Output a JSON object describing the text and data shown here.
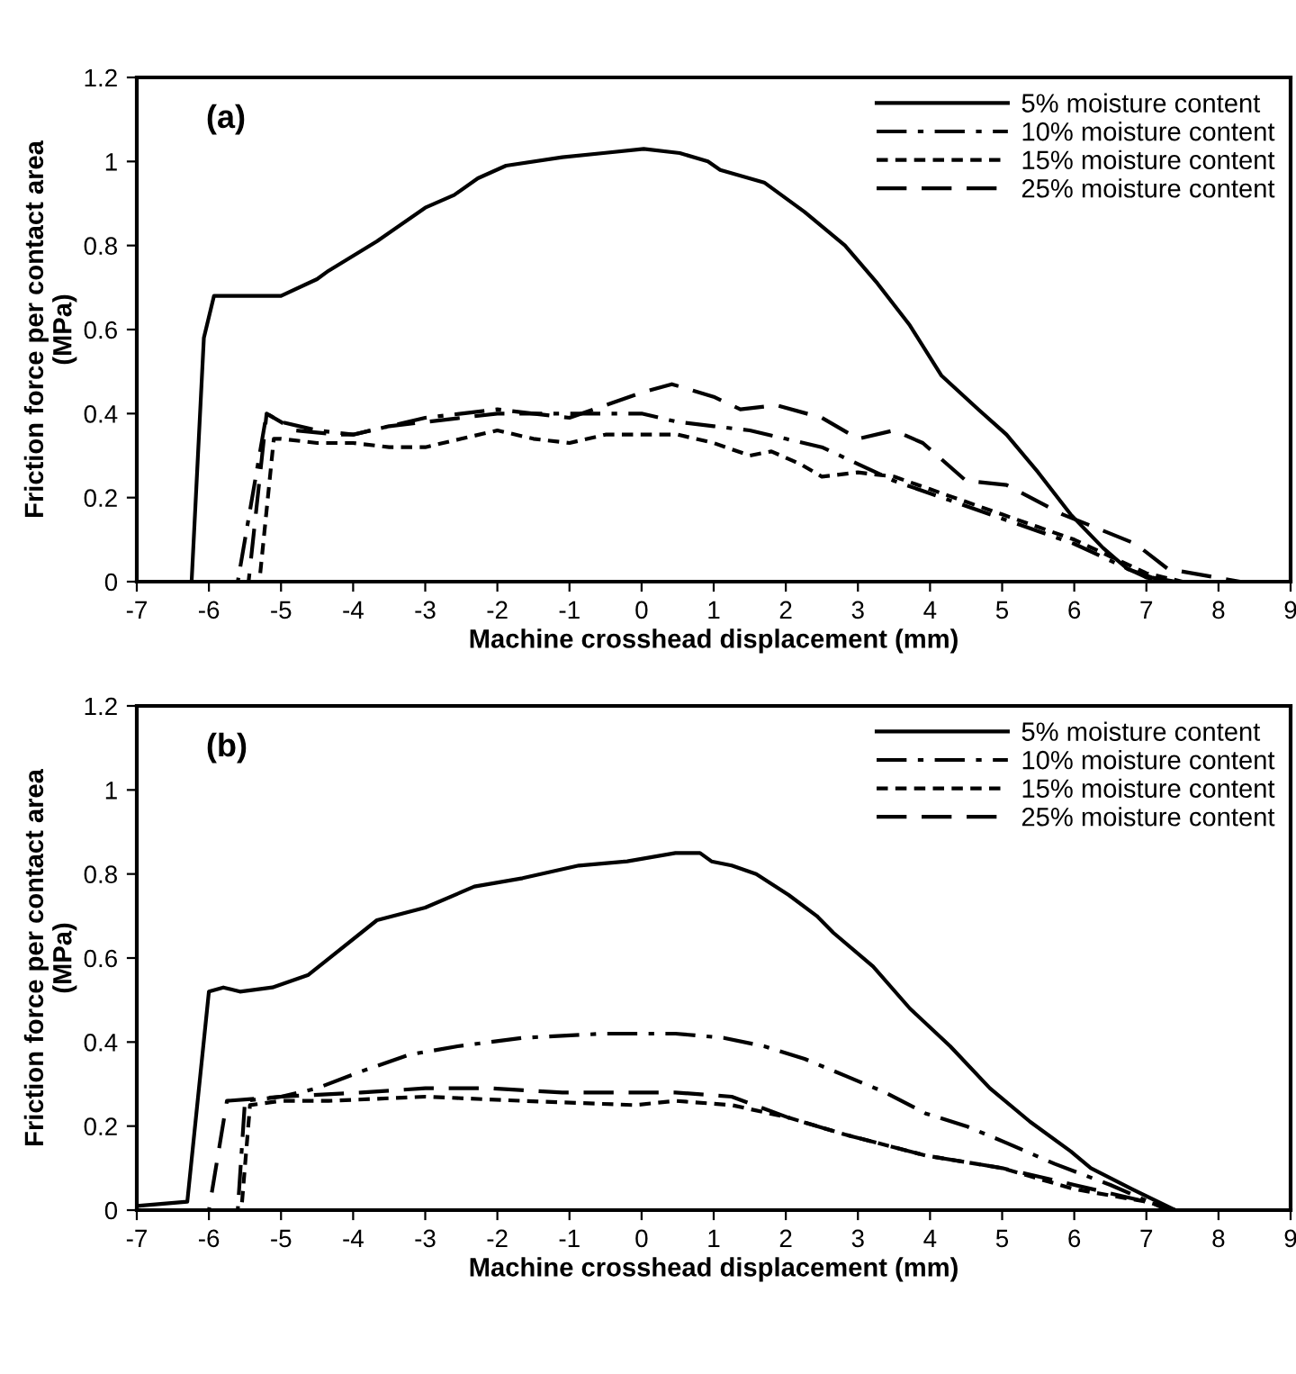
{
  "chart_data": [
    {
      "type": "line",
      "xlabel": "Machine crosshead displacement (mm)",
      "ylabel": "Friction force per contact area\n(MPa)",
      "annotations": [
        "(a)"
      ],
      "xlim": [
        -7,
        9
      ],
      "ylim": [
        0,
        1.2
      ],
      "xticks": [
        -7,
        -6,
        -5,
        -4,
        -3,
        -2,
        -1,
        0,
        1,
        2,
        3,
        4,
        5,
        6,
        7,
        8,
        9
      ],
      "yticks": [
        0,
        0.2,
        0.4,
        0.6,
        0.8,
        1,
        1.2
      ],
      "grid": false,
      "legend": "top right",
      "marker": "none",
      "series": [
        {
          "name": "5% moisture content",
          "color": "#000000",
          "line_style": "solid",
          "x": [
            -7,
            -6.24,
            -6.07,
            -5.93,
            -5.0,
            -4.5,
            -4.34,
            -3.67,
            -3.0,
            -2.6,
            -2.27,
            -1.88,
            -1.1,
            -0.53,
            0.03,
            0.53,
            0.92,
            1.09,
            1.7,
            2.26,
            2.82,
            3.27,
            3.72,
            4.16,
            4.67,
            5.06,
            5.5,
            5.95,
            6.4,
            6.74,
            7.07,
            7.4
          ],
          "values": [
            0,
            0,
            0.58,
            0.68,
            0.68,
            0.72,
            0.74,
            0.81,
            0.89,
            0.92,
            0.96,
            0.99,
            1.01,
            1.02,
            1.03,
            1.02,
            1.0,
            0.98,
            0.95,
            0.88,
            0.8,
            0.71,
            0.61,
            0.49,
            0.41,
            0.35,
            0.26,
            0.16,
            0.08,
            0.03,
            0.01,
            0
          ]
        },
        {
          "name": "10% moisture content",
          "color": "#000000",
          "line_style": "dashdot",
          "x": [
            -7,
            -5.6,
            -5.2,
            -5.0,
            -4.5,
            -4.0,
            -3.5,
            -3.0,
            -2.5,
            -2.0,
            -1.5,
            -1.0,
            0,
            0.5,
            1,
            1.5,
            2,
            2.5,
            3,
            3.5,
            4,
            4.5,
            5,
            5.5,
            6,
            6.5,
            7,
            7.3
          ],
          "values": [
            0,
            0,
            0.4,
            0.38,
            0.36,
            0.35,
            0.37,
            0.39,
            0.4,
            0.41,
            0.4,
            0.4,
            0.4,
            0.38,
            0.37,
            0.36,
            0.34,
            0.32,
            0.28,
            0.24,
            0.21,
            0.18,
            0.15,
            0.12,
            0.09,
            0.05,
            0.01,
            0
          ]
        },
        {
          "name": "15% moisture content",
          "color": "#000000",
          "line_style": "dotted",
          "x": [
            -7,
            -5.3,
            -5.1,
            -5.0,
            -4.5,
            -4.0,
            -3.5,
            -3.0,
            -2.5,
            -2.0,
            -1.5,
            -1.0,
            -0.5,
            0,
            0.5,
            1,
            1.5,
            1.8,
            2.2,
            2.5,
            3,
            3.5,
            4,
            4.5,
            5,
            5.5,
            6,
            6.5,
            7,
            7.5
          ],
          "values": [
            0,
            0,
            0.34,
            0.34,
            0.33,
            0.33,
            0.32,
            0.32,
            0.34,
            0.36,
            0.34,
            0.33,
            0.35,
            0.35,
            0.35,
            0.33,
            0.3,
            0.31,
            0.28,
            0.25,
            0.26,
            0.25,
            0.22,
            0.19,
            0.16,
            0.13,
            0.1,
            0.06,
            0.02,
            0
          ]
        },
        {
          "name": "25% moisture content",
          "color": "#000000",
          "line_style": "dashed",
          "x": [
            -7,
            -5.45,
            -5.2,
            -4.8,
            -4.2,
            -4.0,
            -3.5,
            -3.0,
            -2.5,
            -2.0,
            -1.5,
            -1.0,
            -0.5,
            0,
            0.42,
            1.0,
            1.37,
            1.87,
            2.5,
            3.0,
            3.5,
            3.9,
            4.5,
            5.06,
            5.84,
            6.85,
            7.3,
            8.3
          ],
          "values": [
            0,
            0,
            0.4,
            0.36,
            0.35,
            0.35,
            0.37,
            0.38,
            0.39,
            0.4,
            0.4,
            0.39,
            0.42,
            0.45,
            0.47,
            0.44,
            0.41,
            0.42,
            0.39,
            0.34,
            0.36,
            0.33,
            0.24,
            0.23,
            0.16,
            0.09,
            0.03,
            0
          ]
        }
      ]
    },
    {
      "type": "line",
      "xlabel": "Machine crosshead displacement (mm)",
      "ylabel": "Friction force per contact area\n(MPa)",
      "annotations": [
        "(b)"
      ],
      "xlim": [
        -7,
        9
      ],
      "ylim": [
        0,
        1.2
      ],
      "xticks": [
        -7,
        -6,
        -5,
        -4,
        -3,
        -2,
        -1,
        0,
        1,
        2,
        3,
        4,
        5,
        6,
        7,
        8,
        9
      ],
      "yticks": [
        0,
        0.2,
        0.4,
        0.6,
        0.8,
        1,
        1.2
      ],
      "grid": false,
      "legend": "top right",
      "marker": "none",
      "series": [
        {
          "name": "5% moisture content",
          "color": "#000000",
          "line_style": "solid",
          "x": [
            -7,
            -6.3,
            -6.0,
            -5.8,
            -5.57,
            -5.12,
            -4.62,
            -4.4,
            -3.67,
            -3.0,
            -2.32,
            -1.65,
            -0.87,
            -0.2,
            0.47,
            0.81,
            0.97,
            1.25,
            1.59,
            2.04,
            2.43,
            2.66,
            3.21,
            3.72,
            4.28,
            4.83,
            5.39,
            5.95,
            6.23,
            6.8,
            7.4
          ],
          "values": [
            0.01,
            0.02,
            0.52,
            0.53,
            0.52,
            0.53,
            0.56,
            0.59,
            0.69,
            0.72,
            0.77,
            0.79,
            0.82,
            0.83,
            0.85,
            0.85,
            0.83,
            0.82,
            0.8,
            0.75,
            0.7,
            0.66,
            0.58,
            0.48,
            0.39,
            0.29,
            0.21,
            0.14,
            0.1,
            0.05,
            0
          ]
        },
        {
          "name": "10% moisture content",
          "color": "#000000",
          "line_style": "dashdot",
          "x": [
            -7,
            -5.6,
            -5.5,
            -5.0,
            -4.5,
            -3.89,
            -3.22,
            -2.55,
            -1.65,
            -0.53,
            0.47,
            1.14,
            1.7,
            2.26,
            2.82,
            3.38,
            3.94,
            4.5,
            5.06,
            5.73,
            6.5,
            7.3
          ],
          "values": [
            0,
            0,
            0.26,
            0.27,
            0.29,
            0.33,
            0.37,
            0.39,
            0.41,
            0.42,
            0.42,
            0.41,
            0.39,
            0.36,
            0.32,
            0.28,
            0.23,
            0.2,
            0.16,
            0.11,
            0.06,
            0
          ]
        },
        {
          "name": "15% moisture content",
          "color": "#000000",
          "line_style": "dotted",
          "x": [
            -7,
            -5.55,
            -5.43,
            -5.0,
            -4.34,
            -3.0,
            -1.65,
            -0.09,
            0.47,
            1.25,
            2.04,
            2.82,
            3.94,
            5.0,
            6.0,
            7.0,
            7.4
          ],
          "values": [
            0,
            0,
            0.25,
            0.26,
            0.26,
            0.27,
            0.26,
            0.25,
            0.26,
            0.25,
            0.22,
            0.18,
            0.13,
            0.1,
            0.05,
            0.02,
            0
          ]
        },
        {
          "name": "25% moisture content",
          "color": "#000000",
          "line_style": "dashed",
          "x": [
            -7,
            -6.0,
            -5.75,
            -5.0,
            -3.89,
            -3.0,
            -2.1,
            -1.1,
            0.47,
            1.25,
            2.04,
            2.82,
            3.94,
            5.0,
            6.0,
            7.0,
            7.4
          ],
          "values": [
            0,
            0,
            0.26,
            0.27,
            0.28,
            0.29,
            0.29,
            0.28,
            0.28,
            0.27,
            0.22,
            0.18,
            0.13,
            0.1,
            0.06,
            0.02,
            0
          ]
        }
      ]
    }
  ]
}
